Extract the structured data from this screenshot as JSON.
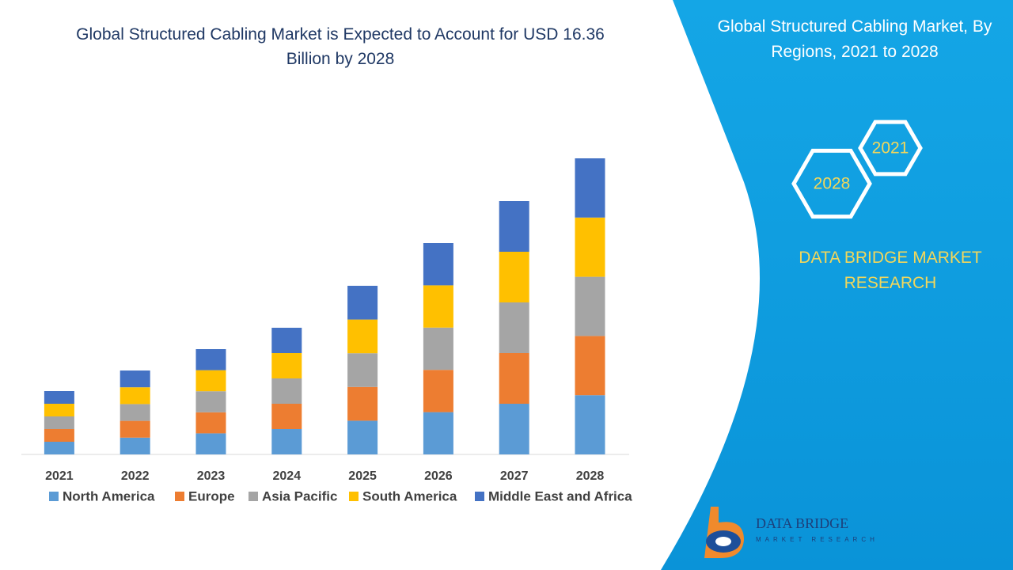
{
  "chart_data": {
    "type": "stacked-bar",
    "title": "Global Structured Cabling Market is Expected to Account for USD 16.36 Billion by 2028",
    "categories": [
      "2021",
      "2022",
      "2023",
      "2024",
      "2025",
      "2026",
      "2027",
      "2028"
    ],
    "series": [
      {
        "name": "North America",
        "color": "#5b9bd5",
        "values": [
          16,
          21.2,
          26.6,
          32,
          42.6,
          53.4,
          64,
          74.8
        ]
      },
      {
        "name": "Europe",
        "color": "#ed7d31",
        "values": [
          16,
          21.2,
          26.6,
          32,
          42.6,
          53.4,
          64,
          74.8
        ]
      },
      {
        "name": "Asia Pacific",
        "color": "#a5a5a5",
        "values": [
          16,
          21.2,
          26.6,
          32,
          42.6,
          53.4,
          64,
          74.8
        ]
      },
      {
        "name": "South America",
        "color": "#ffc000",
        "values": [
          16,
          21.2,
          26.6,
          32,
          42.6,
          53.4,
          64,
          74.8
        ]
      },
      {
        "name": "Middle East and Africa",
        "color": "#4472c4",
        "values": [
          16,
          21.2,
          26.6,
          32,
          42.6,
          53.4,
          64,
          74.8
        ]
      }
    ]
  },
  "panel": {
    "title": "Global Structured Cabling Market, By Regions, 2021 to 2028",
    "hexagons": [
      "2021",
      "2028"
    ],
    "brand": "DATA BRIDGE MARKET RESEARCH",
    "logo": {
      "name": "DATA BRIDGE",
      "tagline": "MARKET RESEARCH"
    }
  }
}
